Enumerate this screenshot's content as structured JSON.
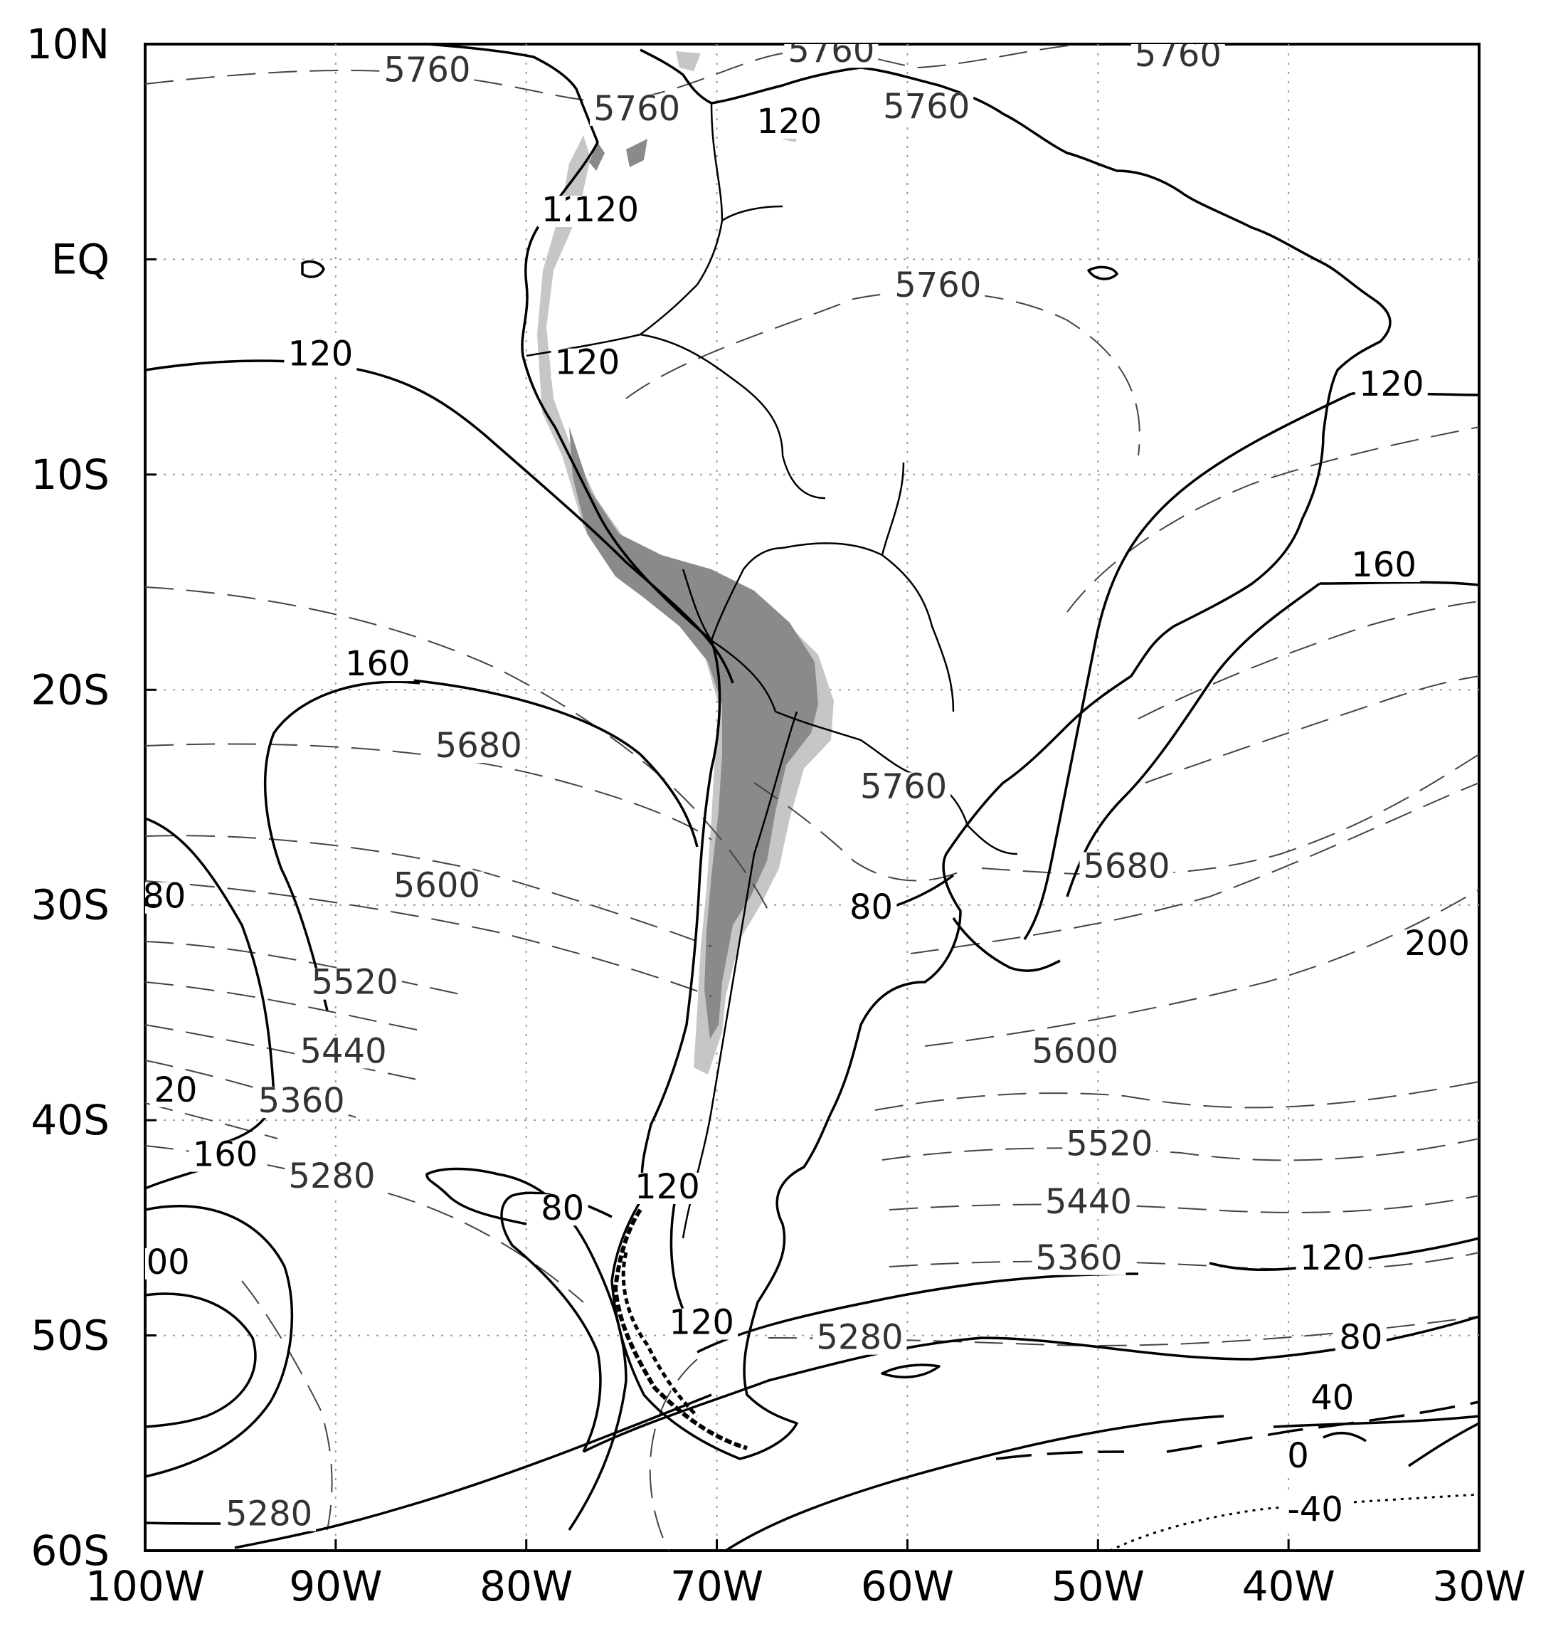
{
  "map": {
    "x_axis": {
      "ticks": [
        "100W",
        "90W",
        "80W",
        "70W",
        "60W",
        "50W",
        "40W",
        "30W"
      ],
      "lon_values": [
        -100,
        -90,
        -80,
        -70,
        -60,
        -50,
        -40,
        -30
      ],
      "range": [
        -100,
        -30
      ]
    },
    "y_axis": {
      "ticks": [
        "10N",
        "EQ",
        "10S",
        "20S",
        "30S",
        "40S",
        "50S",
        "60S"
      ],
      "lat_values": [
        10,
        0,
        -10,
        -20,
        -30,
        -40,
        -50,
        -60
      ],
      "range": [
        -60,
        10
      ]
    },
    "grid": "dotted",
    "colors": {
      "coast": "#000000",
      "thickness_contour": "#000000",
      "height_contour": "#444444",
      "topography_dark": "#8a8a8a",
      "topography_light": "#c8c8c8"
    },
    "thickness_labels": [
      {
        "text": "120",
        "lon": -90.8,
        "lat": -4.8
      },
      {
        "text": "120",
        "lon": -77.5,
        "lat": 1.9
      },
      {
        "text": "120",
        "lon": -75.8,
        "lat": 1.9
      },
      {
        "text": "120",
        "lon": -76.8,
        "lat": -5.2
      },
      {
        "text": "120",
        "lon": -66.2,
        "lat": 6.0
      },
      {
        "text": "120",
        "lon": -34.6,
        "lat": -6.2
      },
      {
        "text": "160",
        "lon": -35.0,
        "lat": -14.6
      },
      {
        "text": "160",
        "lon": -87.8,
        "lat": -19.2
      },
      {
        "text": "200",
        "lon": -32.2,
        "lat": -32.2
      },
      {
        "text": "80",
        "lon": -61.9,
        "lat": -30.5
      },
      {
        "text": "80",
        "lon": -99.0,
        "lat": -30.0
      },
      {
        "text": "20",
        "lon": -98.4,
        "lat": -39.0
      },
      {
        "text": "160",
        "lon": -95.8,
        "lat": -42.0
      },
      {
        "text": "120",
        "lon": -72.6,
        "lat": -43.5
      },
      {
        "text": "80",
        "lon": -78.1,
        "lat": -44.5
      },
      {
        "text": "00",
        "lon": -98.8,
        "lat": -47.0
      },
      {
        "text": "120",
        "lon": -70.8,
        "lat": -49.8
      },
      {
        "text": "120",
        "lon": -37.7,
        "lat": -46.8
      },
      {
        "text": "80",
        "lon": -36.2,
        "lat": -50.5
      },
      {
        "text": "40",
        "lon": -37.7,
        "lat": -53.3
      },
      {
        "text": "0",
        "lon": -39.5,
        "lat": -56.0
      },
      {
        "text": "-40",
        "lon": -38.6,
        "lat": -58.5
      }
    ],
    "height_labels": [
      {
        "text": "5760",
        "lon": -85.2,
        "lat": 8.4
      },
      {
        "text": "5760",
        "lon": -74.2,
        "lat": 6.6
      },
      {
        "text": "5760",
        "lon": -64.0,
        "lat": 9.3
      },
      {
        "text": "5760",
        "lon": -59.0,
        "lat": 6.7
      },
      {
        "text": "5760",
        "lon": -45.8,
        "lat": 9.1
      },
      {
        "text": "5760",
        "lon": -58.4,
        "lat": -1.6
      },
      {
        "text": "5680",
        "lon": -82.5,
        "lat": -23.0
      },
      {
        "text": "5760",
        "lon": -60.2,
        "lat": -24.9
      },
      {
        "text": "5680",
        "lon": -48.5,
        "lat": -28.6
      },
      {
        "text": "5600",
        "lon": -84.7,
        "lat": -29.5
      },
      {
        "text": "5520",
        "lon": -89.0,
        "lat": -34.0
      },
      {
        "text": "5440",
        "lon": -89.6,
        "lat": -37.2
      },
      {
        "text": "5360",
        "lon": -91.8,
        "lat": -39.5
      },
      {
        "text": "5280",
        "lon": -90.2,
        "lat": -43.0
      },
      {
        "text": "5600",
        "lon": -51.2,
        "lat": -37.2
      },
      {
        "text": "5520",
        "lon": -49.4,
        "lat": -41.5
      },
      {
        "text": "5440",
        "lon": -50.5,
        "lat": -44.2
      },
      {
        "text": "5360",
        "lon": -51.0,
        "lat": -46.8
      },
      {
        "text": "5280",
        "lon": -62.5,
        "lat": -50.5
      },
      {
        "text": "5280",
        "lon": -93.5,
        "lat": -58.7
      }
    ]
  }
}
